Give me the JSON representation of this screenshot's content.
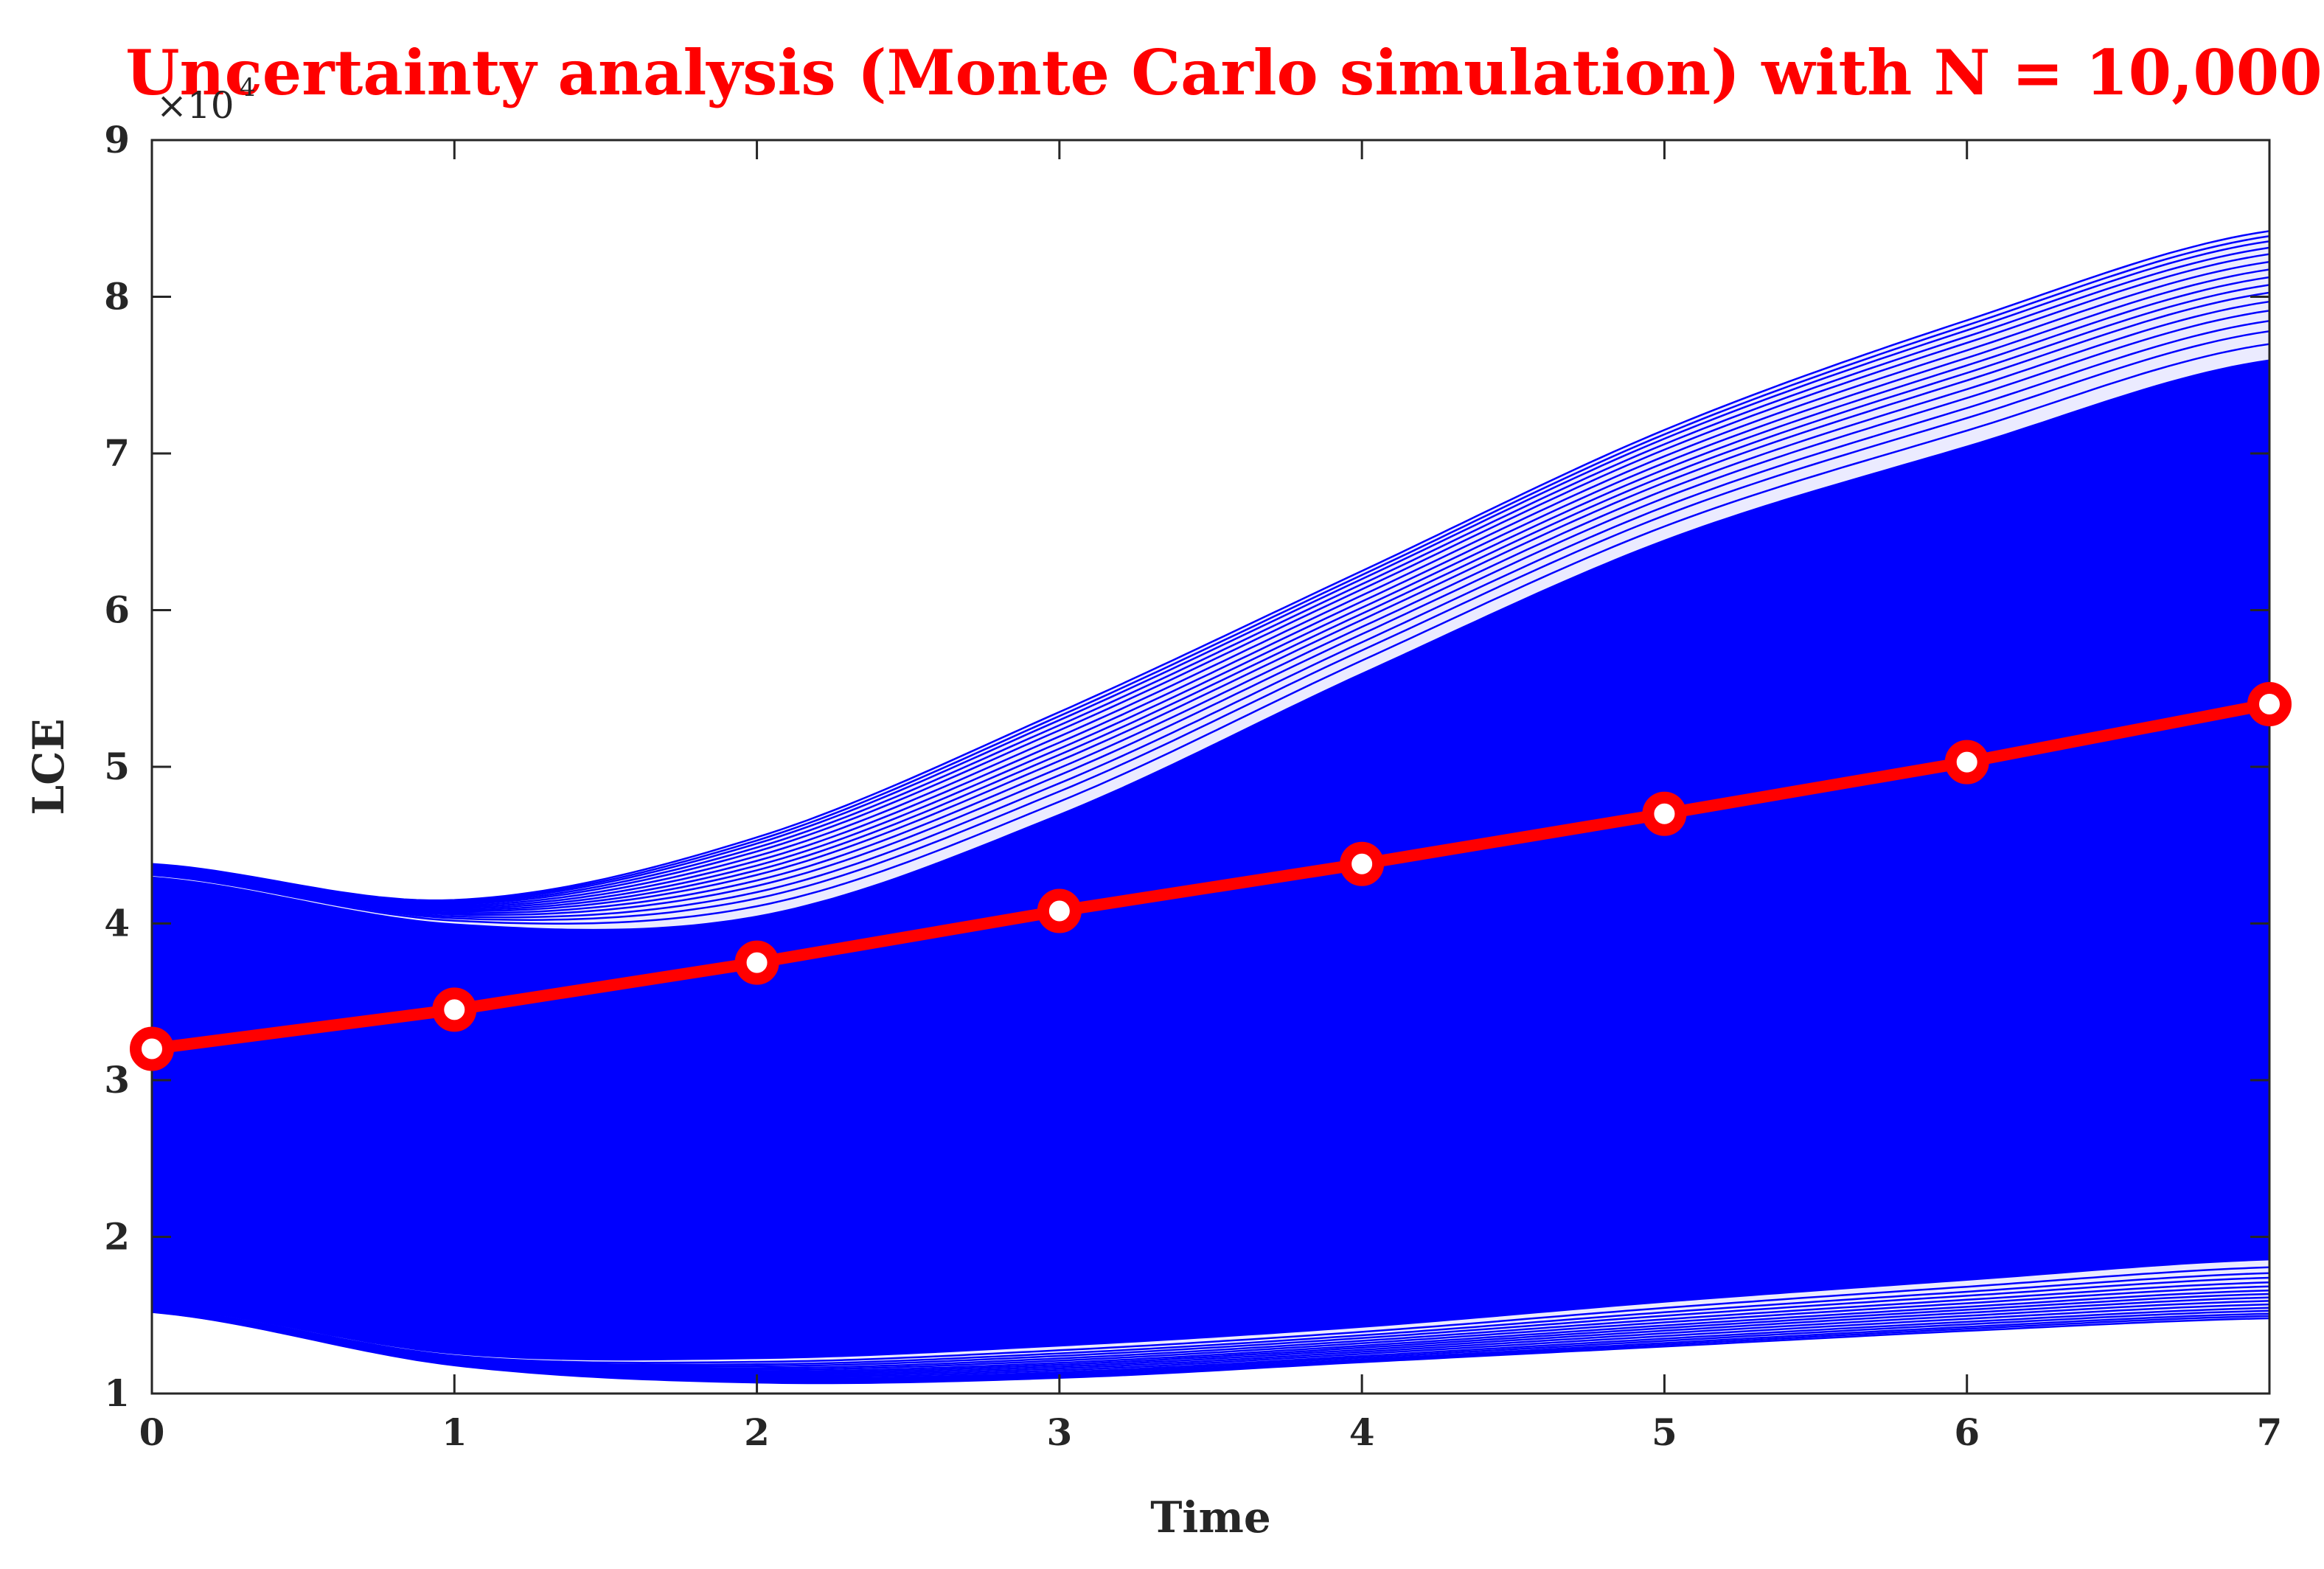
{
  "chart_data": {
    "type": "line",
    "title": "Uncertainty analysis (Monte Carlo simulation) with N = 10,000",
    "xlabel": "Time",
    "ylabel": "LCE",
    "y_multiplier": {
      "base": "×10",
      "exponent": "4"
    },
    "xlim": [
      0,
      7
    ],
    "ylim": [
      1,
      9
    ],
    "x_ticks": [
      "0",
      "1",
      "2",
      "3",
      "4",
      "5",
      "6",
      "7"
    ],
    "y_ticks": [
      "1",
      "2",
      "3",
      "4",
      "5",
      "6",
      "7",
      "8",
      "9"
    ],
    "grid": false,
    "colors": {
      "simulations": "#0000ff",
      "mean": "#ff0000",
      "axes": "#262626"
    },
    "simulation_band": {
      "x": [
        0,
        1,
        2,
        3,
        4,
        5,
        6,
        7
      ],
      "upper": [
        4.38,
        4.15,
        4.55,
        5.35,
        6.25,
        7.15,
        7.85,
        8.42
      ],
      "lower": [
        1.52,
        1.18,
        1.07,
        1.1,
        1.2,
        1.3,
        1.4,
        1.48
      ],
      "dense_upper": [
        4.3,
        4.0,
        4.05,
        4.7,
        5.6,
        6.45,
        7.05,
        7.6
      ],
      "dense_lower": [
        1.55,
        1.25,
        1.22,
        1.3,
        1.42,
        1.58,
        1.72,
        1.85
      ]
    },
    "series": [
      {
        "type": "line",
        "x": [
          0,
          1,
          2,
          3,
          4,
          5,
          6,
          7
        ],
        "values": [
          3.2,
          3.45,
          3.75,
          4.08,
          4.38,
          4.7,
          5.03,
          5.4
        ]
      }
    ]
  }
}
